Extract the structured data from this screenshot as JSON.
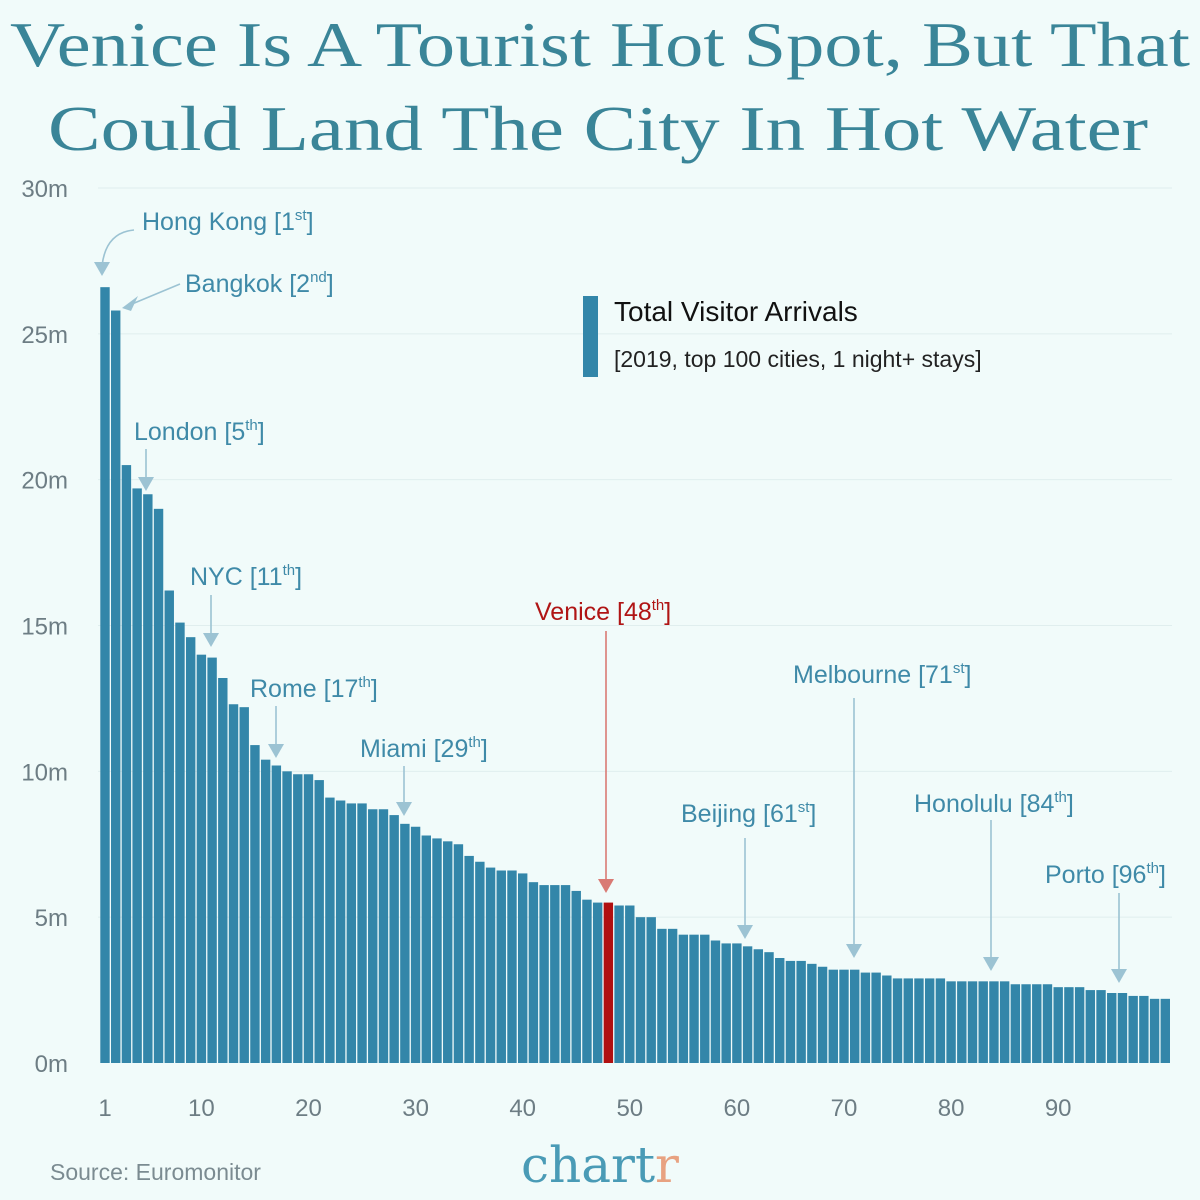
{
  "title": {
    "line1": "Venice Is A Tourist Hot Spot, But That",
    "line2": "Could Land The City In Hot Water"
  },
  "legend": {
    "title": "Total Visitor Arrivals",
    "subtitle": "[2019, top 100 cities, 1 night+ stays]"
  },
  "source": "Source: Euromonitor",
  "logo": {
    "main": "chart",
    "accent": "r"
  },
  "colors": {
    "background": "#f1fbfa",
    "bar": "#3386a9",
    "highlight": "#b01010",
    "annotation": "#3f8aa8",
    "arrow": "#9cc3d3",
    "title": "#3a8598",
    "logo_accent": "#e8a281"
  },
  "chart_data": {
    "type": "bar",
    "title": "Venice Is A Tourist Hot Spot, But That Could Land The City In Hot Water",
    "xlabel": "",
    "ylabel": "",
    "ylim": [
      0,
      30
    ],
    "yticks": [
      "0m",
      "5m",
      "10m",
      "15m",
      "20m",
      "25m",
      "30m"
    ],
    "ytick_values": [
      0,
      5,
      10,
      15,
      20,
      25,
      30
    ],
    "xticks": [
      1,
      10,
      20,
      30,
      40,
      50,
      60,
      70,
      80,
      90
    ],
    "grid": "horizontal",
    "legend": "top-right",
    "series": [
      {
        "name": "Total Visitor Arrivals",
        "unit": "m",
        "values": [
          26.6,
          25.8,
          20.5,
          19.7,
          19.5,
          19.0,
          16.2,
          15.1,
          14.6,
          14.0,
          13.9,
          13.2,
          12.3,
          12.2,
          10.9,
          10.4,
          10.2,
          10.0,
          9.9,
          9.9,
          9.7,
          9.1,
          9.0,
          8.9,
          8.9,
          8.7,
          8.7,
          8.5,
          8.2,
          8.1,
          7.8,
          7.7,
          7.6,
          7.5,
          7.1,
          6.9,
          6.7,
          6.6,
          6.6,
          6.5,
          6.2,
          6.1,
          6.1,
          6.1,
          5.9,
          5.6,
          5.5,
          5.5,
          5.4,
          5.4,
          5.0,
          5.0,
          4.6,
          4.6,
          4.4,
          4.4,
          4.4,
          4.2,
          4.1,
          4.1,
          4.0,
          3.9,
          3.8,
          3.6,
          3.5,
          3.5,
          3.4,
          3.3,
          3.2,
          3.2,
          3.2,
          3.1,
          3.1,
          3.0,
          2.9,
          2.9,
          2.9,
          2.9,
          2.9,
          2.8,
          2.8,
          2.8,
          2.8,
          2.8,
          2.8,
          2.7,
          2.7,
          2.7,
          2.7,
          2.6,
          2.6,
          2.6,
          2.5,
          2.5,
          2.4,
          2.4,
          2.3,
          2.3,
          2.2,
          2.2
        ]
      }
    ],
    "highlight_rank": 48,
    "annotations": [
      {
        "rank": 1,
        "label": "Hong Kong",
        "ordinal": "1",
        "suffix": "st"
      },
      {
        "rank": 2,
        "label": "Bangkok",
        "ordinal": "2",
        "suffix": "nd"
      },
      {
        "rank": 5,
        "label": "London",
        "ordinal": "5",
        "suffix": "th"
      },
      {
        "rank": 11,
        "label": "NYC",
        "ordinal": "11",
        "suffix": "th"
      },
      {
        "rank": 17,
        "label": "Rome",
        "ordinal": "17",
        "suffix": "th"
      },
      {
        "rank": 29,
        "label": "Miami",
        "ordinal": "29",
        "suffix": "th"
      },
      {
        "rank": 48,
        "label": "Venice",
        "ordinal": "48",
        "suffix": "th"
      },
      {
        "rank": 61,
        "label": "Beijing",
        "ordinal": "61",
        "suffix": "st"
      },
      {
        "rank": 71,
        "label": "Melbourne",
        "ordinal": "71",
        "suffix": "st"
      },
      {
        "rank": 84,
        "label": "Honolulu",
        "ordinal": "84",
        "suffix": "th"
      },
      {
        "rank": 96,
        "label": "Porto",
        "ordinal": "96",
        "suffix": "th"
      }
    ]
  }
}
